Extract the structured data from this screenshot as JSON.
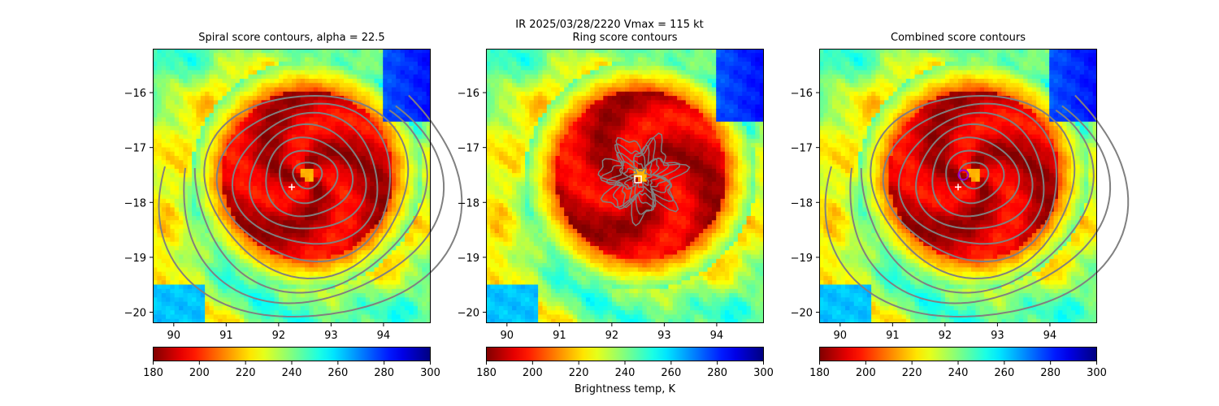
{
  "suptitle_line1": "IR  2025/03/28/2220    Vmax = 115 kt",
  "colorbar_label": "Brightness temp, K",
  "colors": {
    "contour": "#808080",
    "frame": "#000000",
    "center_marker": "#ffffff",
    "combined_marker_edge": "#9900cc"
  },
  "chart_data": [
    {
      "type": "heatmap",
      "title": "Spiral score contours, alpha = 22.5",
      "xlim": [
        89.6,
        94.9
      ],
      "ylim": [
        -20.2,
        -15.2
      ],
      "xticks": [
        90,
        91,
        92,
        93,
        94
      ],
      "yticks": [
        -16,
        -17,
        -18,
        -19,
        -20
      ],
      "xtick_labels": [
        "90",
        "91",
        "92",
        "93",
        "94"
      ],
      "ytick_labels": [
        "−16",
        "−17",
        "−18",
        "−19",
        "−20"
      ],
      "colormap": "jet_r",
      "colorbar_ticks": [
        180,
        200,
        220,
        240,
        260,
        280,
        300
      ],
      "colorbar_tick_labels": [
        "180",
        "200",
        "220",
        "240",
        "260",
        "280",
        "300"
      ],
      "clim": [
        180,
        300
      ],
      "storm_center": [
        92.55,
        -17.5
      ],
      "markers": [
        {
          "symbol": "plus",
          "x": 92.25,
          "y": -17.72
        }
      ],
      "contours": "spiral"
    },
    {
      "type": "heatmap",
      "title": "Ring score contours",
      "xlim": [
        89.6,
        94.9
      ],
      "ylim": [
        -20.2,
        -15.2
      ],
      "xticks": [
        90,
        91,
        92,
        93,
        94
      ],
      "yticks": [
        -16,
        -17,
        -18,
        -19,
        -20
      ],
      "xtick_labels": [
        "90",
        "91",
        "92",
        "93",
        "94"
      ],
      "ytick_labels": [
        "−16",
        "−17",
        "−18",
        "−19",
        "−20"
      ],
      "colormap": "jet_r",
      "colorbar_ticks": [
        180,
        200,
        220,
        240,
        260,
        280,
        300
      ],
      "colorbar_tick_labels": [
        "180",
        "200",
        "220",
        "240",
        "260",
        "280",
        "300"
      ],
      "clim": [
        180,
        300
      ],
      "storm_center": [
        92.55,
        -17.5
      ],
      "markers": [
        {
          "symbol": "square",
          "x": 92.5,
          "y": -17.58
        }
      ],
      "contours": "ring"
    },
    {
      "type": "heatmap",
      "title": "Combined score contours",
      "xlim": [
        89.6,
        94.9
      ],
      "ylim": [
        -20.2,
        -15.2
      ],
      "xticks": [
        90,
        91,
        92,
        93,
        94
      ],
      "yticks": [
        -16,
        -17,
        -18,
        -19,
        -20
      ],
      "xtick_labels": [
        "90",
        "91",
        "92",
        "93",
        "94"
      ],
      "ytick_labels": [
        "−16",
        "−17",
        "−18",
        "−19",
        "−20"
      ],
      "colormap": "jet_r",
      "colorbar_ticks": [
        180,
        200,
        220,
        240,
        260,
        280,
        300
      ],
      "colorbar_tick_labels": [
        "180",
        "200",
        "220",
        "240",
        "260",
        "280",
        "300"
      ],
      "clim": [
        180,
        300
      ],
      "storm_center": [
        92.55,
        -17.5
      ],
      "markers": [
        {
          "symbol": "plus",
          "x": 92.25,
          "y": -17.72
        },
        {
          "symbol": "circle",
          "x": 92.35,
          "y": -17.5
        }
      ],
      "contours": "spiral"
    }
  ]
}
